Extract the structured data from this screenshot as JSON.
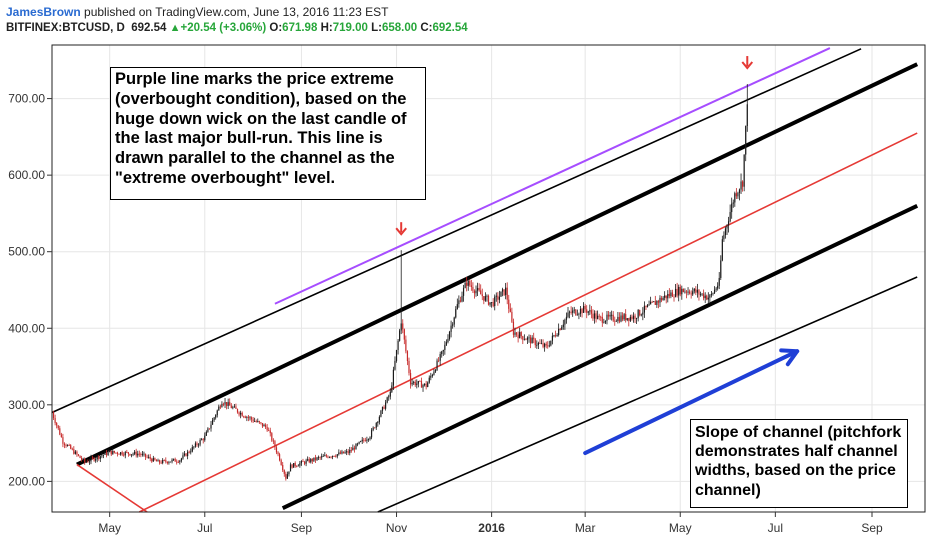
{
  "header": {
    "author": "JamesBrown",
    "published": " published on TradingView.com, June 13, 2016 11:23 EST",
    "symbol": "BITFINEX:BTCUSD, D",
    "last": "692.54",
    "change": "+20.54 (+3.06%)",
    "o_label": "O:",
    "o_value": "671.98",
    "h_label": "H:",
    "h_value": "719.00",
    "l_label": "L:",
    "l_value": "658.00",
    "c_label": "C:",
    "c_value": "692.54"
  },
  "annotations": {
    "purple_note": "Purple line marks the price extreme (overbought condition), based on the huge down wick on the last candle of the last major bull-run.  This line is drawn parallel to the channel as the \"extreme overbought\" level.",
    "slope_note": "Slope of channel (pitchfork demonstrates half channel widths, based on the price channel)"
  },
  "colors": {
    "up": "#1b1b1b",
    "down": "#c62828",
    "channel": "#000000",
    "median": "#e53935",
    "extreme": "#a64dff",
    "slope_arrow": "#1f3fd6",
    "marker": "#e53935",
    "grid": "#e6e6e6"
  },
  "chart_data": {
    "type": "candlestick",
    "symbol": "BITFINEX:BTCUSD",
    "interval": "D",
    "x_ticks": [
      "May",
      "Jul",
      "Sep",
      "Nov",
      "2016",
      "Mar",
      "May",
      "Jul",
      "Sep"
    ],
    "y_ticks": [
      "200.00",
      "300.00",
      "400.00",
      "500.00",
      "600.00",
      "700.00"
    ],
    "ylim": [
      160,
      770
    ],
    "price_path": [
      [
        "2015-03-25",
        290
      ],
      [
        "2015-04-01",
        252
      ],
      [
        "2015-04-15",
        225
      ],
      [
        "2015-05-01",
        238
      ],
      [
        "2015-05-20",
        236
      ],
      [
        "2015-06-01",
        225
      ],
      [
        "2015-06-15",
        228
      ],
      [
        "2015-07-01",
        258
      ],
      [
        "2015-07-12",
        305
      ],
      [
        "2015-07-25",
        288
      ],
      [
        "2015-08-10",
        270
      ],
      [
        "2015-08-18",
        230
      ],
      [
        "2015-08-22",
        205
      ],
      [
        "2015-08-25",
        220
      ],
      [
        "2015-09-15",
        232
      ],
      [
        "2015-10-01",
        238
      ],
      [
        "2015-10-15",
        260
      ],
      [
        "2015-10-28",
        315
      ],
      [
        "2015-11-04",
        410
      ],
      [
        "2015-11-10",
        330
      ],
      [
        "2015-11-20",
        325
      ],
      [
        "2015-12-01",
        370
      ],
      [
        "2015-12-10",
        430
      ],
      [
        "2015-12-16",
        460
      ],
      [
        "2016-01-01",
        432
      ],
      [
        "2016-01-10",
        450
      ],
      [
        "2016-01-15",
        395
      ],
      [
        "2016-01-25",
        385
      ],
      [
        "2016-02-05",
        375
      ],
      [
        "2016-02-20",
        420
      ],
      [
        "2016-03-01",
        425
      ],
      [
        "2016-03-10",
        412
      ],
      [
        "2016-04-01",
        415
      ],
      [
        "2016-04-20",
        440
      ],
      [
        "2016-05-01",
        450
      ],
      [
        "2016-05-10",
        448
      ],
      [
        "2016-05-20",
        440
      ],
      [
        "2016-05-26",
        460
      ],
      [
        "2016-05-28",
        515
      ],
      [
        "2016-06-05",
        575
      ],
      [
        "2016-06-10",
        592
      ],
      [
        "2016-06-13",
        692.54
      ]
    ],
    "highlighted_highs": [
      {
        "date": "2015-11-04",
        "value": 502
      },
      {
        "date": "2016-06-13",
        "value": 719
      }
    ],
    "lines": [
      {
        "role": "upper channel",
        "p1": [
          "2015-04-10",
          222
        ],
        "p2": [
          "2016-09-30",
          745
        ]
      },
      {
        "role": "lower channel",
        "p1": [
          "2015-08-20",
          165
        ],
        "p2": [
          "2016-09-30",
          560
        ]
      },
      {
        "role": "median",
        "p1": [
          "2015-05-20",
          160
        ],
        "p2": [
          "2016-09-30",
          655
        ]
      },
      {
        "role": "outer upper",
        "p1": [
          "2015-03-25",
          290
        ],
        "p2": [
          "2016-08-25",
          765
        ]
      },
      {
        "role": "outer lower",
        "p1": [
          "2015-10-20",
          160
        ],
        "p2": [
          "2016-09-30",
          467
        ]
      },
      {
        "role": "extreme overbought",
        "p1": [
          "2015-08-15",
          432
        ],
        "p2": [
          "2016-08-05",
          766
        ]
      },
      {
        "role": "pitchfork handle",
        "p1": [
          "2015-04-10",
          222
        ],
        "p2": [
          "2015-05-25",
          160
        ]
      }
    ],
    "slope_arrow": {
      "p1": [
        "2016-03-01",
        237
      ],
      "p2": [
        "2016-07-15",
        370
      ]
    }
  }
}
